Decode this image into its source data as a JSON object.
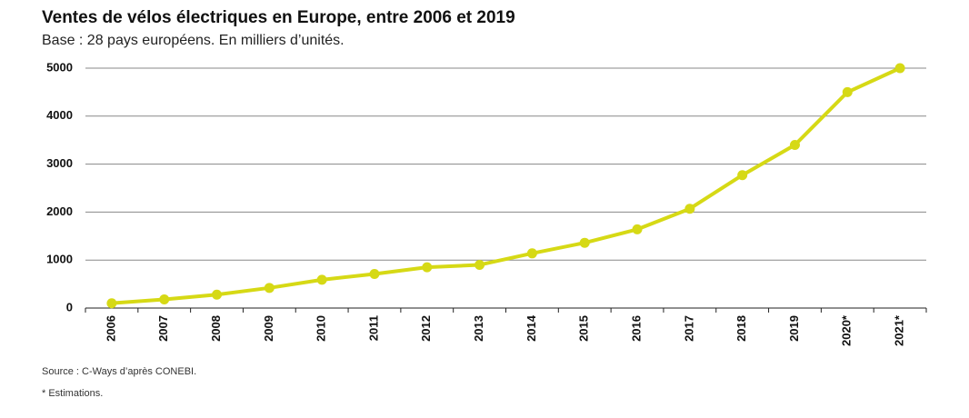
{
  "chart_data": {
    "type": "line",
    "title": "Ventes de vélos électriques en Europe, entre 2006 et 2019",
    "subtitle": "Base : 28 pays européens. En milliers d’unités.",
    "categories": [
      "2006",
      "2007",
      "2008",
      "2009",
      "2010",
      "2011",
      "2012",
      "2013",
      "2014",
      "2015",
      "2016",
      "2017",
      "2018",
      "2019",
      "2020*",
      "2021*"
    ],
    "values": [
      100,
      180,
      280,
      420,
      590,
      710,
      850,
      900,
      1140,
      1360,
      1640,
      2070,
      2770,
      3400,
      4500,
      5000
    ],
    "color": "#d6d915",
    "ylim": [
      0,
      5000
    ],
    "yticks": [
      0,
      1000,
      2000,
      3000,
      4000,
      5000
    ],
    "grid": true,
    "source": "Source : C-Ways d’après CONEBI.",
    "note": "* Estimations."
  }
}
